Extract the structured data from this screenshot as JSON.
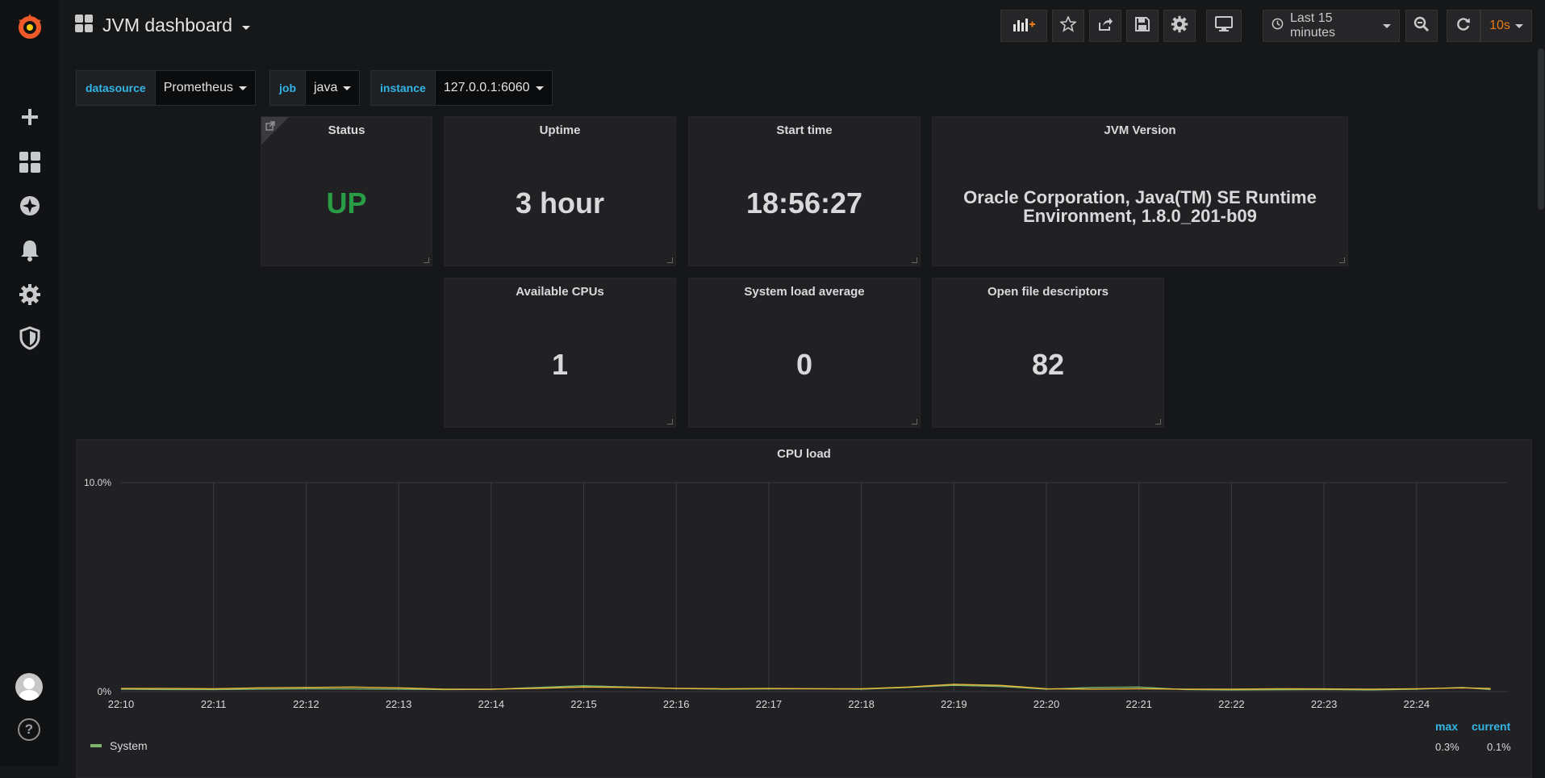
{
  "navbar": {
    "title": "JVM dashboard",
    "time_range": "Last 15 minutes",
    "refresh_interval": "10s"
  },
  "variables": [
    {
      "label": "datasource",
      "value": "Prometheus"
    },
    {
      "label": "job",
      "value": "java"
    },
    {
      "label": "instance",
      "value": "127.0.0.1:6060"
    }
  ],
  "stats": {
    "status": {
      "title": "Status",
      "value": "UP"
    },
    "uptime": {
      "title": "Uptime",
      "value": "3 hour"
    },
    "start_time": {
      "title": "Start time",
      "value": "18:56:27"
    },
    "jvm_version": {
      "title": "JVM Version",
      "line1": "Oracle Corporation, Java(TM) SE Runtime",
      "line2": "Environment, 1.8.0_201-b09"
    },
    "cpus": {
      "title": "Available CPUs",
      "value": "1"
    },
    "load": {
      "title": "System load average",
      "value": "0"
    },
    "fds": {
      "title": "Open file descriptors",
      "value": "82"
    }
  },
  "colors": {
    "status_up": "#299c46",
    "accent": "#33b5e5",
    "refresh": "#eb7b18",
    "series_system": "#7eb26d",
    "series_process": "#eab839"
  },
  "graph": {
    "legend_headers": {
      "max": "max",
      "current": "current"
    },
    "legend": [
      {
        "name": "System",
        "max": "0.3%",
        "current": "0.1%"
      }
    ]
  },
  "chart_data": {
    "type": "line",
    "title": "CPU load",
    "ylim": [
      0,
      10
    ],
    "y_ticks": [
      "0%",
      "10.0%"
    ],
    "x_ticks": [
      "22:10",
      "22:11",
      "22:12",
      "22:13",
      "22:14",
      "22:15",
      "22:16",
      "22:17",
      "22:18",
      "22:19",
      "22:20",
      "22:21",
      "22:22",
      "22:23",
      "22:24"
    ],
    "grid": true,
    "x": [
      0,
      0.5,
      1,
      1.5,
      2,
      2.5,
      3,
      3.5,
      4,
      4.5,
      5,
      5.5,
      6,
      6.5,
      7,
      7.5,
      8,
      8.5,
      9,
      9.5,
      10,
      10.5,
      11,
      11.5,
      12,
      12.5,
      13,
      13.5,
      14,
      14.5,
      14.8
    ],
    "series": [
      {
        "name": "System",
        "values": [
          0.12,
          0.1,
          0.1,
          0.12,
          0.14,
          0.13,
          0.12,
          0.1,
          0.11,
          0.2,
          0.28,
          0.22,
          0.15,
          0.12,
          0.13,
          0.14,
          0.12,
          0.2,
          0.3,
          0.25,
          0.12,
          0.2,
          0.22,
          0.1,
          0.08,
          0.09,
          0.1,
          0.08,
          0.12,
          0.2,
          0.1
        ]
      },
      {
        "values": [
          0.15,
          0.15,
          0.14,
          0.18,
          0.2,
          0.22,
          0.18,
          0.12,
          0.12,
          0.16,
          0.22,
          0.2,
          0.16,
          0.14,
          0.15,
          0.14,
          0.14,
          0.22,
          0.35,
          0.3,
          0.14,
          0.12,
          0.14,
          0.12,
          0.12,
          0.14,
          0.13,
          0.12,
          0.14,
          0.18,
          0.15
        ]
      }
    ]
  }
}
